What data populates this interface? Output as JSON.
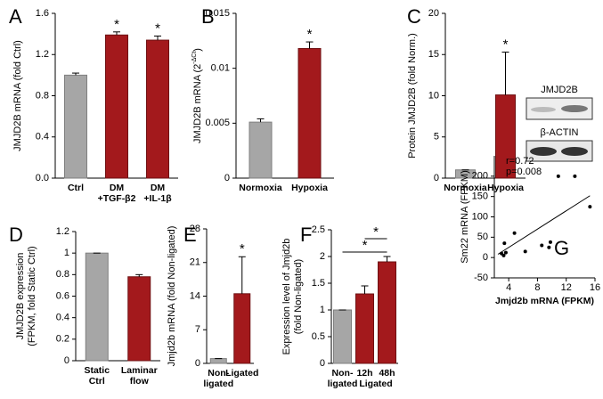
{
  "chart_data": [
    {
      "type": "bar",
      "label": "A",
      "ylabel": [
        "JMJD2B mRNA (fold  Ctrl)"
      ],
      "categories": [
        [
          "Ctrl"
        ],
        [
          "DM",
          "+TGF-β2"
        ],
        [
          "DM",
          "+IL-1β"
        ]
      ],
      "values": [
        1.0,
        1.39,
        1.34
      ],
      "errors": [
        0.02,
        0.03,
        0.04
      ],
      "colors": [
        "#a6a6a6",
        "#a3191c",
        "#a3191c"
      ],
      "significance": [
        null,
        "*",
        "*"
      ],
      "ylim": [
        0,
        1.6
      ],
      "yticks": [
        {
          "value": 0,
          "label": "0.0"
        },
        0.4,
        0.8,
        1.2,
        1.6
      ]
    },
    {
      "type": "bar",
      "label": "B",
      "ylabel": [
        "JMJD2B mRNA (2",
        "-ΔCt",
        ")"
      ],
      "categories": [
        [
          "Normoxia"
        ],
        [
          "Hypoxia"
        ]
      ],
      "values": [
        0.0051,
        0.0118
      ],
      "errors": [
        0.0003,
        0.0006
      ],
      "colors": [
        "#a6a6a6",
        "#a3191c"
      ],
      "significance": [
        null,
        "*"
      ],
      "ylim": [
        0,
        0.015
      ],
      "yticks": [
        0,
        0.005,
        0.01,
        0.015
      ]
    },
    {
      "type": "bar",
      "label": "C",
      "ylabel": [
        "Protein JMJD2B (fold Norm.)"
      ],
      "categories": [
        [
          "Normoxia"
        ],
        [
          "Hypoxia"
        ]
      ],
      "values": [
        1,
        10.1
      ],
      "errors": [
        0,
        5.2
      ],
      "colors": [
        "#a6a6a6",
        "#a3191c"
      ],
      "significance": [
        null,
        "*"
      ],
      "ylim": [
        0,
        20
      ],
      "yticks": [
        0,
        5,
        10,
        15,
        20
      ],
      "blot_labels": [
        "JMJD2B",
        "β-ACTIN"
      ]
    },
    {
      "type": "bar",
      "label": "D",
      "ylabel": [
        "JMJD2B expression",
        "(FPKM, fold Static Ctrl)"
      ],
      "categories": [
        [
          "Static",
          "Ctrl"
        ],
        [
          "Laminar",
          "flow"
        ]
      ],
      "values": [
        1,
        0.78
      ],
      "errors": [
        0,
        0.02
      ],
      "colors": [
        "#a6a6a6",
        "#a3191c"
      ],
      "significance": [
        null,
        null
      ],
      "ylim": [
        0,
        1.2
      ],
      "yticks": [
        0,
        0.2,
        0.4,
        0.6,
        0.8,
        1,
        1.2
      ]
    },
    {
      "type": "bar",
      "label": "E",
      "ylabel": [
        "Jmjd2b mRNA (fold Non-ligated)"
      ],
      "categories": [
        [
          "Non-",
          "ligated"
        ],
        [
          "Ligated"
        ]
      ],
      "values": [
        1,
        14.5
      ],
      "errors": [
        0,
        7.7
      ],
      "colors": [
        "#a6a6a6",
        "#a3191c"
      ],
      "significance": [
        null,
        "*"
      ],
      "ylim": [
        0,
        28
      ],
      "yticks": [
        0,
        7,
        14,
        21,
        28
      ]
    },
    {
      "type": "bar",
      "label": "F",
      "ylabel": [
        "Expression level of Jmjd2b",
        "(fold Non-ligated)"
      ],
      "categories": [
        [
          "Non-",
          "ligated"
        ],
        [
          "12h"
        ],
        [
          "48h"
        ]
      ],
      "group_label": "Ligated",
      "values": [
        1,
        1.3,
        1.9
      ],
      "errors": [
        0,
        0.15,
        0.1
      ],
      "colors": [
        "#a6a6a6",
        "#a3191c",
        "#a3191c"
      ],
      "significance": [
        null,
        null,
        null
      ],
      "brackets": [
        "*",
        "*"
      ],
      "ylim": [
        0,
        2.5
      ],
      "yticks": [
        0,
        0.5,
        1,
        1.5,
        2,
        2.5
      ]
    },
    {
      "type": "scatter",
      "label": "G",
      "xlabel": "Jmjd2b mRNA (FPKM)",
      "ylabel": [
        "Sm22 mRNA (FPKM)"
      ],
      "annotations": [
        "r=0.72",
        "p=0.008"
      ],
      "x": [
        3.0,
        3.3,
        3.4,
        4.8,
        6.3,
        8.6,
        9.6,
        9.8,
        10.9,
        13.2,
        15.3,
        3.6
      ],
      "y": [
        10,
        5,
        35,
        60,
        15,
        30,
        25,
        38,
        200,
        200,
        125,
        12
      ],
      "fit": {
        "x": [
          2.5,
          15.3
        ],
        "y": [
          8,
          152
        ]
      },
      "xlim": [
        2,
        16
      ],
      "xticks": [
        4,
        8,
        12,
        16
      ],
      "ylim": [
        -50,
        250
      ],
      "yticks": [
        -50,
        0,
        50,
        100,
        150,
        200
      ]
    }
  ]
}
